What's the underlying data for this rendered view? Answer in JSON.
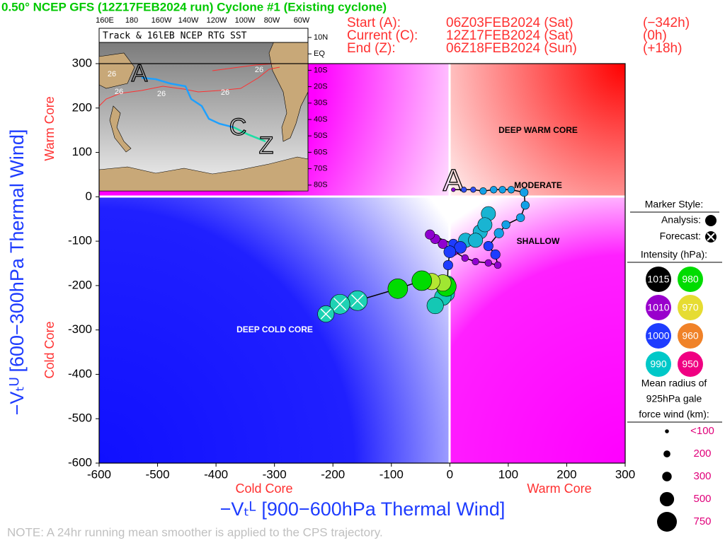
{
  "header": {
    "title": "0.50° NCEP GFS (12Z17FEB2024 run) Cyclone #1 (Existing cyclone)",
    "rows": [
      [
        "Start (A):",
        "06Z03FEB2024 (Sat)",
        "(−342h)"
      ],
      [
        "Current (C):",
        "12Z17FEB2024 (Sat)",
        "(0h)"
      ],
      [
        "End (Z):",
        "06Z18FEB2024 (Sun)",
        "(+18h)"
      ]
    ]
  },
  "chart_data": {
    "type": "scatter",
    "x_label": "−Vₜᴸ [900−600hPa Thermal Wind]",
    "y_label": "−Vₜᵁ [600−300hPa Thermal Wind]",
    "x_region_labels": [
      "Cold Core",
      "Warm Core"
    ],
    "y_region_labels": [
      "Cold Core",
      "Warm Core"
    ],
    "annotations": [
      "DEEP WARM CORE",
      "MODERATE",
      "SHALLOW",
      "DEEP COLD CORE"
    ],
    "start_marker": "A",
    "xlim": [
      -600,
      300
    ],
    "ylim": [
      -600,
      300
    ],
    "xticks": [
      -600,
      -500,
      -400,
      -300,
      -200,
      -100,
      0,
      100,
      200,
      300
    ],
    "yticks": [
      -600,
      -500,
      -400,
      -300,
      -200,
      -100,
      0,
      100,
      200,
      300
    ],
    "x": [
      6,
      24,
      40,
      57,
      75,
      90,
      105,
      127,
      129,
      121,
      96,
      84,
      66,
      78,
      82,
      66,
      44,
      26,
      6,
      -12,
      -25,
      -34,
      6,
      27,
      52,
      66,
      60,
      44,
      18,
      0,
      -3,
      -4,
      -6,
      -12,
      -25,
      -6,
      -12,
      -31,
      -48,
      -89,
      -158,
      -188,
      -212
    ],
    "y": [
      16,
      16,
      16,
      13,
      16,
      16,
      16,
      10,
      -19,
      -47,
      -63,
      -82,
      -111,
      -130,
      -154,
      -149,
      -146,
      -138,
      -122,
      -106,
      -95,
      -85,
      -106,
      -98,
      -79,
      -38,
      -63,
      -98,
      -114,
      -124,
      -154,
      -194,
      -218,
      -226,
      -245,
      -202,
      -194,
      -191,
      -189,
      -207,
      -234,
      -242,
      -264
    ],
    "sizes": [
      100,
      150,
      150,
      200,
      200,
      200,
      200,
      250,
      250,
      250,
      250,
      300,
      300,
      300,
      200,
      200,
      200,
      200,
      300,
      300,
      300,
      300,
      300,
      500,
      500,
      500,
      500,
      500,
      400,
      400,
      300,
      500,
      600,
      600,
      600,
      750,
      600,
      600,
      750,
      750,
      750,
      750,
      600
    ],
    "colors": [
      "#8a00d4",
      "#3050f0",
      "#3050f0",
      "#14a0e6",
      "#14a0e6",
      "#14a0e6",
      "#14a0e6",
      "#14a0e6",
      "#14a0e6",
      "#14a0e6",
      "#14a0e6",
      "#14a0e6",
      "#1e3cff",
      "#1e3cff",
      "#9000d0",
      "#9000d0",
      "#9000d0",
      "#9000d0",
      "#9000d0",
      "#9000d0",
      "#9000d0",
      "#9000d0",
      "#1e3cff",
      "#19b4d2",
      "#19b4d2",
      "#19b4d2",
      "#19b4d2",
      "#19b4d2",
      "#1e3cff",
      "#1e3cff",
      "#1e3cff",
      "#14c8b4",
      "#14c8b4",
      "#14c8b4",
      "#14c8b4",
      "#00dc00",
      "#a0e632",
      "#b4e632",
      "#00dc00",
      "#00dc00",
      "#1ed2b4",
      "#1ed2b4",
      "#1ed2b4"
    ],
    "forecast": [
      false,
      false,
      false,
      false,
      false,
      false,
      false,
      false,
      false,
      false,
      false,
      false,
      false,
      false,
      false,
      false,
      false,
      false,
      false,
      false,
      false,
      false,
      false,
      false,
      false,
      false,
      false,
      false,
      false,
      false,
      false,
      false,
      false,
      false,
      false,
      false,
      false,
      false,
      false,
      false,
      true,
      true,
      true
    ]
  },
  "legend": {
    "marker_title": "Marker Style:",
    "analysis": "Analysis:",
    "forecast": "Forecast:",
    "intensity_title": "Intensity (hPa):",
    "intensity": [
      {
        "value": 1015,
        "color": "#000000"
      },
      {
        "value": 980,
        "color": "#00dc00"
      },
      {
        "value": 1010,
        "color": "#9900cc"
      },
      {
        "value": 970,
        "color": "#e6dc32"
      },
      {
        "value": 1000,
        "color": "#1e3cff"
      },
      {
        "value": 960,
        "color": "#f08228"
      },
      {
        "value": 990,
        "color": "#00c8c8"
      },
      {
        "value": 950,
        "color": "#f00082"
      }
    ],
    "size_title": [
      "Mean radius of",
      "925hPa gale",
      "force wind (km):"
    ],
    "sizes": [
      {
        "value": 100,
        "label": "<100"
      },
      200,
      300,
      500,
      750
    ]
  },
  "inset": {
    "title": "Track & 16lEB NCEP RTG SST",
    "lon_labels": [
      "160E",
      "180",
      "160W",
      "140W",
      "120W",
      "100W",
      "80W",
      "60W"
    ],
    "lat_labels": [
      "10N",
      "EQ",
      "10S",
      "20S",
      "30S",
      "40S",
      "50S",
      "60S",
      "70S",
      "80S"
    ],
    "sst_labels": [
      "26",
      "26",
      "26",
      "26",
      "26"
    ],
    "track_labels": [
      "A",
      "C",
      "Z"
    ]
  },
  "note": "NOTE:  A 24hr running mean smoother is applied to the CPS trajectory."
}
